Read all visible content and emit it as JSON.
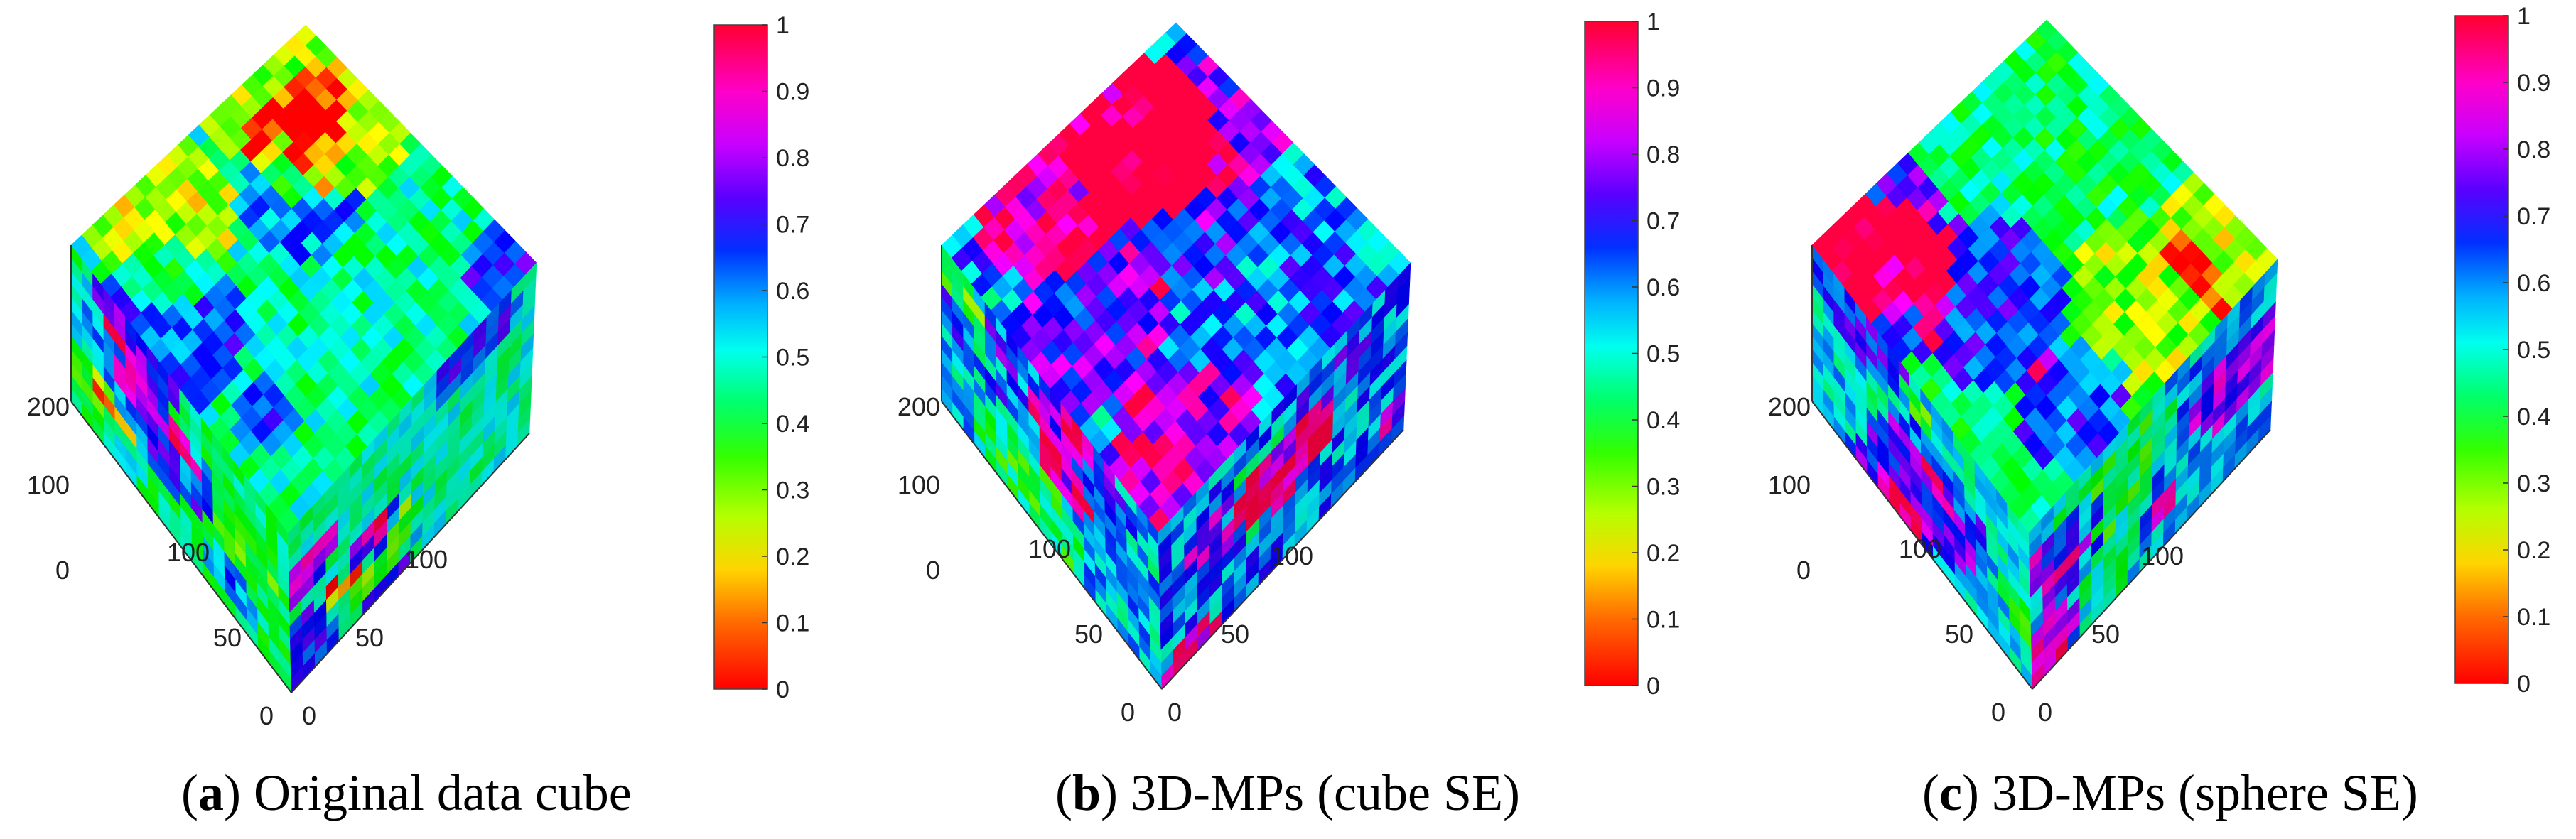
{
  "chart_data": [
    {
      "type": "3d-volume",
      "panel_letter": "a",
      "caption": "Original data cube",
      "z_ticks": [
        "0",
        "100",
        "200"
      ],
      "x_ticks": [
        "0",
        "50",
        "100"
      ],
      "y_ticks": [
        "0",
        "50",
        "100"
      ],
      "colorbar_ticks": [
        "0",
        "0.1",
        "0.2",
        "0.3",
        "0.4",
        "0.5",
        "0.6",
        "0.7",
        "0.8",
        "0.9",
        "1"
      ],
      "colorbar_range": [
        0,
        1
      ],
      "colormap": "hsv",
      "top_mean": 0.45,
      "top_noise": 0.22,
      "face_mean": 0.42,
      "face_noise": 0.18
    },
    {
      "type": "3d-volume",
      "panel_letter": "b",
      "caption": "3D-MPs (cube SE)",
      "z_ticks": [
        "0",
        "100",
        "200"
      ],
      "x_ticks": [
        "0",
        "50",
        "100"
      ],
      "y_ticks": [
        "0",
        "50",
        "100"
      ],
      "colorbar_ticks": [
        "0",
        "0.1",
        "0.2",
        "0.3",
        "0.4",
        "0.5",
        "0.6",
        "0.7",
        "0.8",
        "0.9",
        "1"
      ],
      "colorbar_range": [
        0,
        1
      ],
      "colormap": "hsv",
      "top_mean": 0.62,
      "top_noise": 0.28,
      "face_mean": 0.55,
      "face_noise": 0.25
    },
    {
      "type": "3d-volume",
      "panel_letter": "c",
      "caption": "3D-MPs (sphere SE)",
      "z_ticks": [
        "0",
        "100",
        "200"
      ],
      "x_ticks": [
        "0",
        "50",
        "100"
      ],
      "y_ticks": [
        "0",
        "50",
        "100"
      ],
      "colorbar_ticks": [
        "0",
        "0.1",
        "0.2",
        "0.3",
        "0.4",
        "0.5",
        "0.6",
        "0.7",
        "0.8",
        "0.9",
        "1"
      ],
      "colorbar_range": [
        0,
        1
      ],
      "colormap": "hsv",
      "top_mean": 0.42,
      "top_noise": 0.22,
      "face_mean": 0.52,
      "face_noise": 0.22
    }
  ],
  "captions": [
    {
      "letter": "a",
      "text": "Original data cube"
    },
    {
      "letter": "b",
      "text": "3D-MPs (cube SE)"
    },
    {
      "letter": "c",
      "text": "3D-MPs (sphere SE)"
    }
  ]
}
